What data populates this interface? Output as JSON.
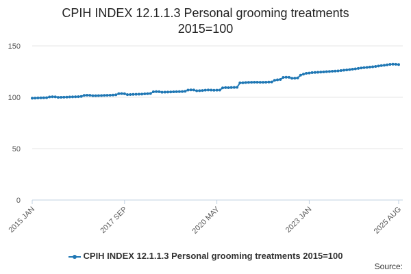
{
  "colors": {
    "series": "#1f77b4",
    "grid": "#e6e6e6",
    "axis": "#c0d0e0"
  },
  "footer": {
    "source_label": "Source:"
  },
  "chart_data": {
    "type": "line",
    "title_lines": [
      "CPIH INDEX 12.1.1.3 Personal grooming treatments",
      "2015=100"
    ],
    "xlabel": "",
    "ylabel": "",
    "ylim": [
      0,
      150
    ],
    "yticks": [
      0,
      50,
      100,
      150
    ],
    "xticks": [
      {
        "label": "2015 JAN",
        "index": 0
      },
      {
        "label": "2017 SEP",
        "index": 32
      },
      {
        "label": "2020 MAY",
        "index": 64
      },
      {
        "label": "2023 JAN",
        "index": 96
      },
      {
        "label": "2025 AUG",
        "index": 127
      }
    ],
    "grid": true,
    "legend_position": "bottom",
    "series": [
      {
        "name": "CPIH INDEX 12.1.1.3 Personal grooming treatments 2015=100",
        "start": "2015 JAN",
        "frequency": "monthly",
        "values": [
          99.1,
          99.2,
          99.3,
          99.4,
          99.5,
          99.6,
          100.3,
          100.5,
          100.4,
          99.9,
          100.0,
          100.1,
          100.2,
          100.3,
          100.4,
          100.5,
          100.6,
          100.8,
          101.8,
          102.0,
          101.9,
          101.5,
          101.5,
          101.6,
          101.7,
          101.8,
          101.9,
          102.0,
          102.2,
          102.4,
          103.5,
          103.6,
          103.4,
          102.6,
          102.7,
          102.8,
          102.9,
          103.0,
          103.1,
          103.3,
          103.5,
          103.7,
          105.3,
          105.5,
          105.4,
          104.9,
          105.0,
          105.1,
          105.2,
          105.3,
          105.4,
          105.5,
          105.6,
          105.8,
          107.0,
          107.2,
          107.1,
          106.3,
          106.4,
          106.6,
          106.9,
          107.1,
          107.0,
          106.8,
          106.9,
          107.0,
          109.2,
          109.4,
          109.3,
          109.5,
          109.6,
          109.7,
          114.0,
          114.1,
          114.3,
          114.5,
          114.6,
          114.7,
          114.7,
          114.6,
          114.6,
          114.7,
          114.8,
          114.9,
          116.5,
          117.0,
          117.3,
          119.3,
          119.5,
          119.4,
          118.5,
          118.6,
          118.8,
          121.5,
          122.5,
          123.3,
          123.6,
          124.0,
          124.2,
          124.3,
          124.5,
          124.7,
          124.9,
          125.1,
          125.3,
          125.5,
          125.7,
          126.0,
          126.3,
          126.6,
          126.9,
          127.3,
          127.7,
          128.1,
          128.5,
          128.8,
          129.1,
          129.4,
          129.7,
          130.0,
          130.4,
          130.8,
          131.2,
          131.6,
          132.0,
          132.2,
          132.1,
          131.8
        ]
      }
    ]
  }
}
